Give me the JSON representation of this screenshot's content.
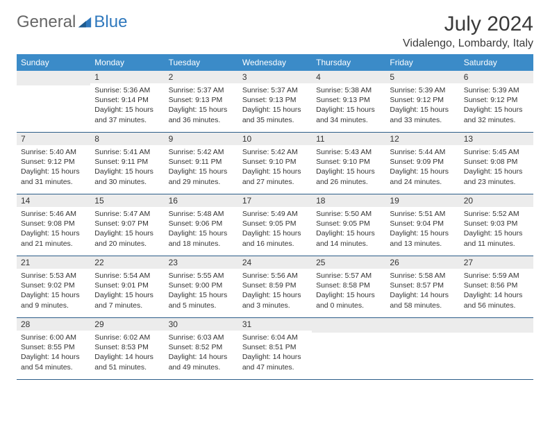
{
  "brand": {
    "part1": "General",
    "part2": "Blue",
    "accent_color": "#2f78bd"
  },
  "title": "July 2024",
  "location": "Vidalengo, Lombardy, Italy",
  "colors": {
    "header_bg": "#3b8bc8",
    "header_text": "#ffffff",
    "daynum_bg": "#ececec",
    "row_border": "#2b5c88",
    "text": "#333333",
    "background": "#ffffff"
  },
  "day_headers": [
    "Sunday",
    "Monday",
    "Tuesday",
    "Wednesday",
    "Thursday",
    "Friday",
    "Saturday"
  ],
  "weeks": [
    [
      {
        "num": "",
        "sunrise": "",
        "sunset": "",
        "daylight": ""
      },
      {
        "num": "1",
        "sunrise": "Sunrise: 5:36 AM",
        "sunset": "Sunset: 9:14 PM",
        "daylight": "Daylight: 15 hours and 37 minutes."
      },
      {
        "num": "2",
        "sunrise": "Sunrise: 5:37 AM",
        "sunset": "Sunset: 9:13 PM",
        "daylight": "Daylight: 15 hours and 36 minutes."
      },
      {
        "num": "3",
        "sunrise": "Sunrise: 5:37 AM",
        "sunset": "Sunset: 9:13 PM",
        "daylight": "Daylight: 15 hours and 35 minutes."
      },
      {
        "num": "4",
        "sunrise": "Sunrise: 5:38 AM",
        "sunset": "Sunset: 9:13 PM",
        "daylight": "Daylight: 15 hours and 34 minutes."
      },
      {
        "num": "5",
        "sunrise": "Sunrise: 5:39 AM",
        "sunset": "Sunset: 9:12 PM",
        "daylight": "Daylight: 15 hours and 33 minutes."
      },
      {
        "num": "6",
        "sunrise": "Sunrise: 5:39 AM",
        "sunset": "Sunset: 9:12 PM",
        "daylight": "Daylight: 15 hours and 32 minutes."
      }
    ],
    [
      {
        "num": "7",
        "sunrise": "Sunrise: 5:40 AM",
        "sunset": "Sunset: 9:12 PM",
        "daylight": "Daylight: 15 hours and 31 minutes."
      },
      {
        "num": "8",
        "sunrise": "Sunrise: 5:41 AM",
        "sunset": "Sunset: 9:11 PM",
        "daylight": "Daylight: 15 hours and 30 minutes."
      },
      {
        "num": "9",
        "sunrise": "Sunrise: 5:42 AM",
        "sunset": "Sunset: 9:11 PM",
        "daylight": "Daylight: 15 hours and 29 minutes."
      },
      {
        "num": "10",
        "sunrise": "Sunrise: 5:42 AM",
        "sunset": "Sunset: 9:10 PM",
        "daylight": "Daylight: 15 hours and 27 minutes."
      },
      {
        "num": "11",
        "sunrise": "Sunrise: 5:43 AM",
        "sunset": "Sunset: 9:10 PM",
        "daylight": "Daylight: 15 hours and 26 minutes."
      },
      {
        "num": "12",
        "sunrise": "Sunrise: 5:44 AM",
        "sunset": "Sunset: 9:09 PM",
        "daylight": "Daylight: 15 hours and 24 minutes."
      },
      {
        "num": "13",
        "sunrise": "Sunrise: 5:45 AM",
        "sunset": "Sunset: 9:08 PM",
        "daylight": "Daylight: 15 hours and 23 minutes."
      }
    ],
    [
      {
        "num": "14",
        "sunrise": "Sunrise: 5:46 AM",
        "sunset": "Sunset: 9:08 PM",
        "daylight": "Daylight: 15 hours and 21 minutes."
      },
      {
        "num": "15",
        "sunrise": "Sunrise: 5:47 AM",
        "sunset": "Sunset: 9:07 PM",
        "daylight": "Daylight: 15 hours and 20 minutes."
      },
      {
        "num": "16",
        "sunrise": "Sunrise: 5:48 AM",
        "sunset": "Sunset: 9:06 PM",
        "daylight": "Daylight: 15 hours and 18 minutes."
      },
      {
        "num": "17",
        "sunrise": "Sunrise: 5:49 AM",
        "sunset": "Sunset: 9:05 PM",
        "daylight": "Daylight: 15 hours and 16 minutes."
      },
      {
        "num": "18",
        "sunrise": "Sunrise: 5:50 AM",
        "sunset": "Sunset: 9:05 PM",
        "daylight": "Daylight: 15 hours and 14 minutes."
      },
      {
        "num": "19",
        "sunrise": "Sunrise: 5:51 AM",
        "sunset": "Sunset: 9:04 PM",
        "daylight": "Daylight: 15 hours and 13 minutes."
      },
      {
        "num": "20",
        "sunrise": "Sunrise: 5:52 AM",
        "sunset": "Sunset: 9:03 PM",
        "daylight": "Daylight: 15 hours and 11 minutes."
      }
    ],
    [
      {
        "num": "21",
        "sunrise": "Sunrise: 5:53 AM",
        "sunset": "Sunset: 9:02 PM",
        "daylight": "Daylight: 15 hours and 9 minutes."
      },
      {
        "num": "22",
        "sunrise": "Sunrise: 5:54 AM",
        "sunset": "Sunset: 9:01 PM",
        "daylight": "Daylight: 15 hours and 7 minutes."
      },
      {
        "num": "23",
        "sunrise": "Sunrise: 5:55 AM",
        "sunset": "Sunset: 9:00 PM",
        "daylight": "Daylight: 15 hours and 5 minutes."
      },
      {
        "num": "24",
        "sunrise": "Sunrise: 5:56 AM",
        "sunset": "Sunset: 8:59 PM",
        "daylight": "Daylight: 15 hours and 3 minutes."
      },
      {
        "num": "25",
        "sunrise": "Sunrise: 5:57 AM",
        "sunset": "Sunset: 8:58 PM",
        "daylight": "Daylight: 15 hours and 0 minutes."
      },
      {
        "num": "26",
        "sunrise": "Sunrise: 5:58 AM",
        "sunset": "Sunset: 8:57 PM",
        "daylight": "Daylight: 14 hours and 58 minutes."
      },
      {
        "num": "27",
        "sunrise": "Sunrise: 5:59 AM",
        "sunset": "Sunset: 8:56 PM",
        "daylight": "Daylight: 14 hours and 56 minutes."
      }
    ],
    [
      {
        "num": "28",
        "sunrise": "Sunrise: 6:00 AM",
        "sunset": "Sunset: 8:55 PM",
        "daylight": "Daylight: 14 hours and 54 minutes."
      },
      {
        "num": "29",
        "sunrise": "Sunrise: 6:02 AM",
        "sunset": "Sunset: 8:53 PM",
        "daylight": "Daylight: 14 hours and 51 minutes."
      },
      {
        "num": "30",
        "sunrise": "Sunrise: 6:03 AM",
        "sunset": "Sunset: 8:52 PM",
        "daylight": "Daylight: 14 hours and 49 minutes."
      },
      {
        "num": "31",
        "sunrise": "Sunrise: 6:04 AM",
        "sunset": "Sunset: 8:51 PM",
        "daylight": "Daylight: 14 hours and 47 minutes."
      },
      {
        "num": "",
        "sunrise": "",
        "sunset": "",
        "daylight": ""
      },
      {
        "num": "",
        "sunrise": "",
        "sunset": "",
        "daylight": ""
      },
      {
        "num": "",
        "sunrise": "",
        "sunset": "",
        "daylight": ""
      }
    ]
  ]
}
